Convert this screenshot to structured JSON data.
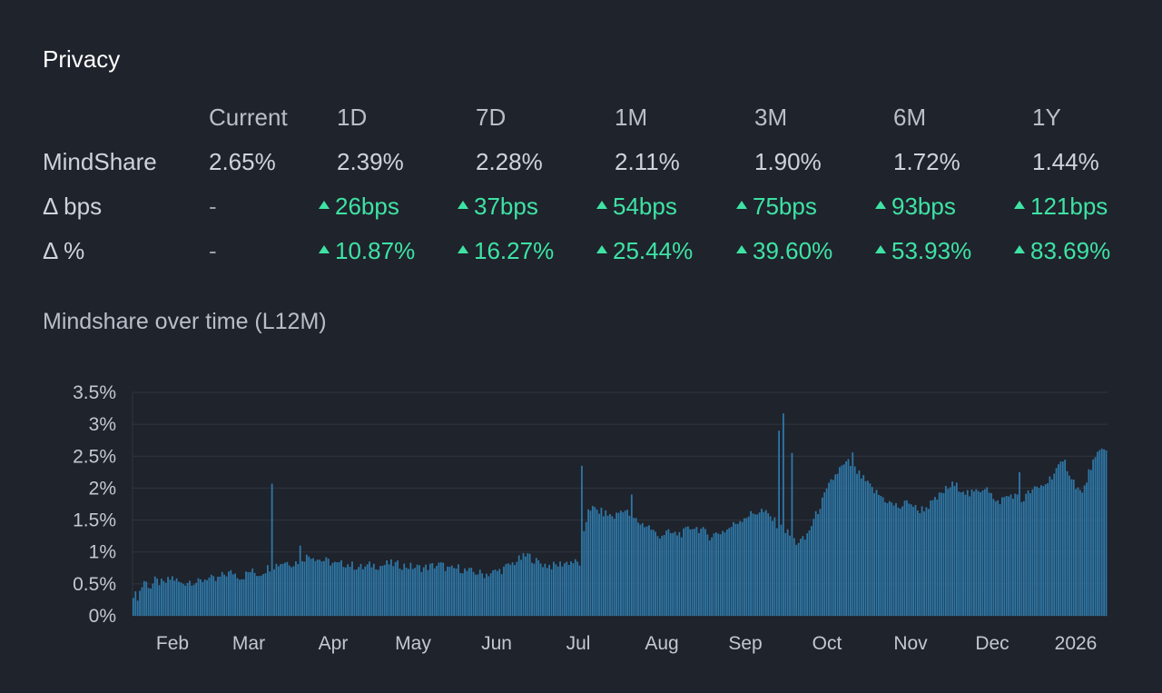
{
  "title": "Privacy",
  "table": {
    "headers": [
      "",
      "Current",
      "1D",
      "7D",
      "1M",
      "3M",
      "6M",
      "1Y"
    ],
    "rows": [
      {
        "label": "MindShare",
        "cells": [
          "2.65%",
          "2.39%",
          "2.28%",
          "2.11%",
          "1.90%",
          "1.72%",
          "1.44%"
        ],
        "kind": [
          "val",
          "val",
          "val",
          "val",
          "val",
          "val",
          "val"
        ]
      },
      {
        "label": "Δ bps",
        "cells": [
          "-",
          "26bps",
          "37bps",
          "54bps",
          "75bps",
          "93bps",
          "121bps"
        ],
        "kind": [
          "dash",
          "pos",
          "pos",
          "pos",
          "pos",
          "pos",
          "pos"
        ]
      },
      {
        "label": "Δ %",
        "cells": [
          "-",
          "10.87%",
          "16.27%",
          "25.44%",
          "39.60%",
          "53.93%",
          "83.69%"
        ],
        "kind": [
          "dash",
          "pos",
          "pos",
          "pos",
          "pos",
          "pos",
          "pos"
        ]
      }
    ]
  },
  "colors": {
    "positive": "#3ee3a4",
    "bar": "#2e78a8",
    "grid": "#30353f",
    "background": "#1f232c"
  },
  "chart_data": {
    "type": "bar",
    "title": "Mindshare over time (L12M)",
    "xlabel": "",
    "ylabel": "",
    "ylim": [
      0,
      3.5
    ],
    "y_ticks": [
      "0%",
      "0.5%",
      "1%",
      "1.5%",
      "2%",
      "2.5%",
      "3%",
      "3.5%"
    ],
    "x_ticks": [
      "Feb",
      "Mar",
      "Apr",
      "May",
      "Jun",
      "Jul",
      "Aug",
      "Sep",
      "Oct",
      "Nov",
      "Dec",
      "2026"
    ],
    "grid": true,
    "anchors": [
      [
        0,
        0.35
      ],
      [
        2,
        0.3
      ],
      [
        5,
        0.55
      ],
      [
        8,
        0.45
      ],
      [
        10,
        0.55
      ],
      [
        14,
        0.5
      ],
      [
        18,
        0.6
      ],
      [
        22,
        0.5
      ],
      [
        26,
        0.55
      ],
      [
        30,
        0.52
      ],
      [
        34,
        0.6
      ],
      [
        38,
        0.55
      ],
      [
        42,
        0.65
      ],
      [
        46,
        0.68
      ],
      [
        50,
        0.6
      ],
      [
        54,
        0.7
      ],
      [
        58,
        0.65
      ],
      [
        62,
        0.75
      ],
      [
        66,
        0.8
      ],
      [
        70,
        0.85
      ],
      [
        74,
        0.82
      ],
      [
        78,
        0.9
      ],
      [
        82,
        0.95
      ],
      [
        86,
        0.88
      ],
      [
        90,
        0.85
      ],
      [
        94,
        0.8
      ],
      [
        98,
        0.82
      ],
      [
        102,
        0.78
      ],
      [
        106,
        0.75
      ],
      [
        110,
        0.8
      ],
      [
        114,
        0.78
      ],
      [
        118,
        0.82
      ],
      [
        122,
        0.8
      ],
      [
        126,
        0.78
      ],
      [
        130,
        0.76
      ],
      [
        134,
        0.75
      ],
      [
        138,
        0.78
      ],
      [
        142,
        0.8
      ],
      [
        146,
        0.72
      ],
      [
        150,
        0.75
      ],
      [
        154,
        0.7
      ],
      [
        158,
        0.68
      ],
      [
        162,
        0.65
      ],
      [
        166,
        0.68
      ],
      [
        170,
        0.72
      ],
      [
        174,
        0.8
      ],
      [
        178,
        0.88
      ],
      [
        182,
        0.95
      ],
      [
        186,
        0.85
      ],
      [
        190,
        0.8
      ],
      [
        194,
        0.78
      ],
      [
        198,
        0.82
      ],
      [
        202,
        0.85
      ],
      [
        206,
        0.82
      ],
      [
        210,
        1.7
      ],
      [
        214,
        1.65
      ],
      [
        218,
        1.6
      ],
      [
        222,
        1.55
      ],
      [
        226,
        1.68
      ],
      [
        230,
        1.55
      ],
      [
        234,
        1.45
      ],
      [
        238,
        1.4
      ],
      [
        242,
        1.25
      ],
      [
        246,
        1.3
      ],
      [
        250,
        1.28
      ],
      [
        254,
        1.3
      ],
      [
        258,
        1.4
      ],
      [
        262,
        1.35
      ],
      [
        266,
        1.25
      ],
      [
        270,
        1.3
      ],
      [
        274,
        1.35
      ],
      [
        278,
        1.45
      ],
      [
        282,
        1.55
      ],
      [
        286,
        1.6
      ],
      [
        290,
        1.65
      ],
      [
        294,
        1.55
      ],
      [
        298,
        1.4
      ],
      [
        302,
        1.3
      ],
      [
        306,
        1.15
      ],
      [
        310,
        1.2
      ],
      [
        314,
        1.5
      ],
      [
        318,
        1.8
      ],
      [
        322,
        2.1
      ],
      [
        326,
        2.3
      ],
      [
        330,
        2.4
      ],
      [
        334,
        2.25
      ],
      [
        338,
        2.1
      ],
      [
        342,
        1.95
      ],
      [
        346,
        1.85
      ],
      [
        350,
        1.75
      ],
      [
        354,
        1.7
      ],
      [
        358,
        1.8
      ],
      [
        362,
        1.65
      ],
      [
        366,
        1.7
      ],
      [
        370,
        1.8
      ],
      [
        374,
        1.95
      ],
      [
        378,
        2.05
      ],
      [
        382,
        2.0
      ],
      [
        386,
        1.9
      ],
      [
        390,
        1.95
      ],
      [
        394,
        2.05
      ],
      [
        398,
        1.75
      ],
      [
        402,
        1.85
      ],
      [
        406,
        1.9
      ],
      [
        410,
        1.8
      ],
      [
        414,
        1.95
      ],
      [
        418,
        2.0
      ],
      [
        422,
        2.1
      ],
      [
        426,
        2.3
      ],
      [
        430,
        2.4
      ],
      [
        434,
        2.1
      ],
      [
        438,
        1.9
      ],
      [
        442,
        2.35
      ],
      [
        446,
        2.55
      ],
      [
        449,
        2.65
      ]
    ],
    "spikes": [
      [
        64,
        2.07
      ],
      [
        77,
        1.1
      ],
      [
        207,
        2.35
      ],
      [
        230,
        1.9
      ],
      [
        300,
        3.17
      ],
      [
        298,
        2.9
      ],
      [
        304,
        2.55
      ],
      [
        332,
        2.56
      ],
      [
        409,
        2.25
      ]
    ],
    "num_bars": 450
  }
}
